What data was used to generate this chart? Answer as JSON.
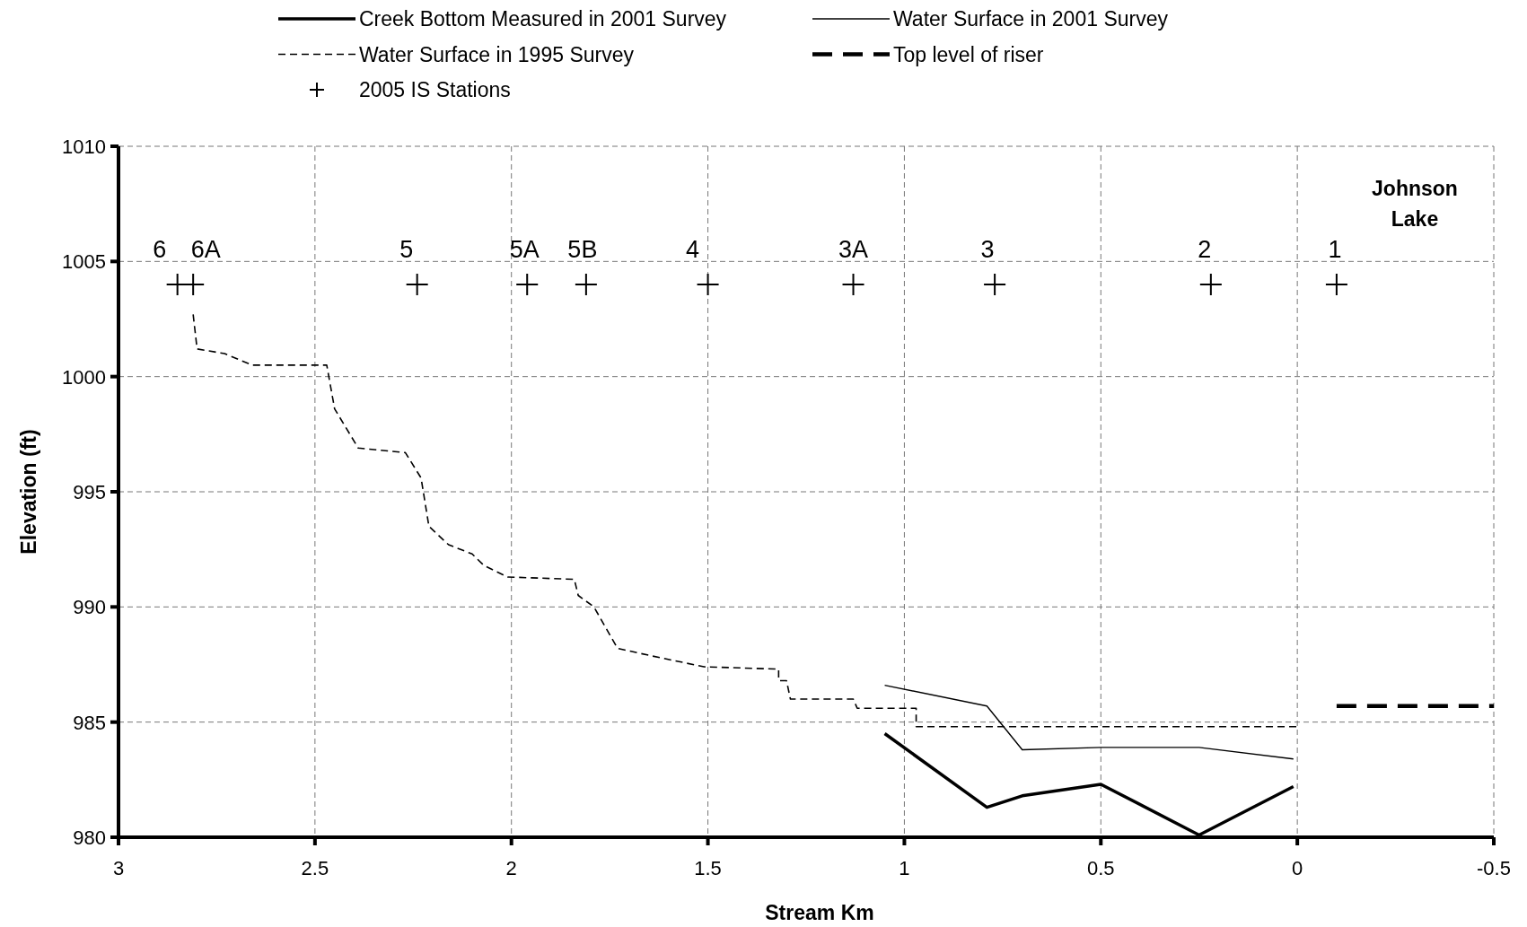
{
  "chart_data": {
    "type": "line",
    "xlabel": "Stream Km",
    "ylabel": "Elevation (ft)",
    "xlim": [
      3,
      -0.5
    ],
    "xticks": [
      3,
      2.5,
      2,
      1.5,
      1,
      0.5,
      0,
      -0.5
    ],
    "ylim": [
      980,
      1010
    ],
    "yticks": [
      980,
      985,
      990,
      995,
      1000,
      1005,
      1010
    ],
    "grid": true,
    "legend": "top",
    "series": [
      {
        "name": "Creek Bottom Measured in 2001 Survey",
        "color": "#000000",
        "line_style": "solid",
        "x": [
          1.05,
          0.79,
          0.7,
          0.5,
          0.25,
          0.01
        ],
        "values": [
          984.5,
          981.3,
          981.8,
          982.3,
          980.1,
          982.2
        ]
      },
      {
        "name": "Water Surface in 2001 Survey",
        "color": "#000000",
        "line_style": "solid",
        "x": [
          1.05,
          0.79,
          0.7,
          0.5,
          0.25,
          0.01
        ],
        "values": [
          986.6,
          985.7,
          983.8,
          983.9,
          983.9,
          983.4
        ]
      },
      {
        "name": "Water Surface in 1995 Survey",
        "color": "#000000",
        "line_style": "dashed",
        "x": [
          2.81,
          2.8,
          2.73,
          2.66,
          2.47,
          2.45,
          2.39,
          2.27,
          2.23,
          2.21,
          2.16,
          2.1,
          2.07,
          2.01,
          1.84,
          1.83,
          1.79,
          1.73,
          1.65,
          1.51,
          1.32,
          1.32,
          1.3,
          1.29,
          1.13,
          1.12,
          0.97,
          0.97,
          0.0
        ],
        "values": [
          1002.7,
          1001.2,
          1001.0,
          1000.5,
          1000.5,
          998.6,
          996.9,
          996.7,
          995.6,
          993.5,
          992.7,
          992.3,
          991.8,
          991.3,
          991.2,
          990.5,
          990.0,
          988.2,
          987.9,
          987.4,
          987.3,
          986.8,
          986.8,
          986.0,
          986.0,
          985.6,
          985.6,
          984.8,
          984.8
        ]
      },
      {
        "name": "Top level of riser",
        "color": "#000000",
        "line_style": "dashed",
        "x": [
          -0.1,
          -0.5
        ],
        "values": [
          985.7,
          985.7
        ]
      },
      {
        "name": "2005 IS Stations",
        "type": "scatter",
        "color": "#000000",
        "marker": "cross",
        "x": [
          2.85,
          2.81,
          2.24,
          1.96,
          1.81,
          1.5,
          1.13,
          0.77,
          0.22,
          -0.1
        ],
        "values": [
          1004,
          1004,
          1004,
          1004,
          1004,
          1004,
          1004,
          1004,
          1004,
          1004
        ]
      }
    ],
    "annotations": [
      {
        "text": "6",
        "x": 2.85,
        "y": 1004
      },
      {
        "text": "6A",
        "x": 2.81,
        "y": 1004
      },
      {
        "text": "5",
        "x": 2.24,
        "y": 1004
      },
      {
        "text": "5A",
        "x": 1.96,
        "y": 1004
      },
      {
        "text": "5B",
        "x": 1.81,
        "y": 1004
      },
      {
        "text": "4",
        "x": 1.5,
        "y": 1004
      },
      {
        "text": "3A",
        "x": 1.13,
        "y": 1004
      },
      {
        "text": "3",
        "x": 0.77,
        "y": 1004
      },
      {
        "text": "2",
        "x": 0.22,
        "y": 1004
      },
      {
        "text": "1",
        "x": -0.1,
        "y": 1004
      },
      "Johnson\nLake"
    ]
  }
}
